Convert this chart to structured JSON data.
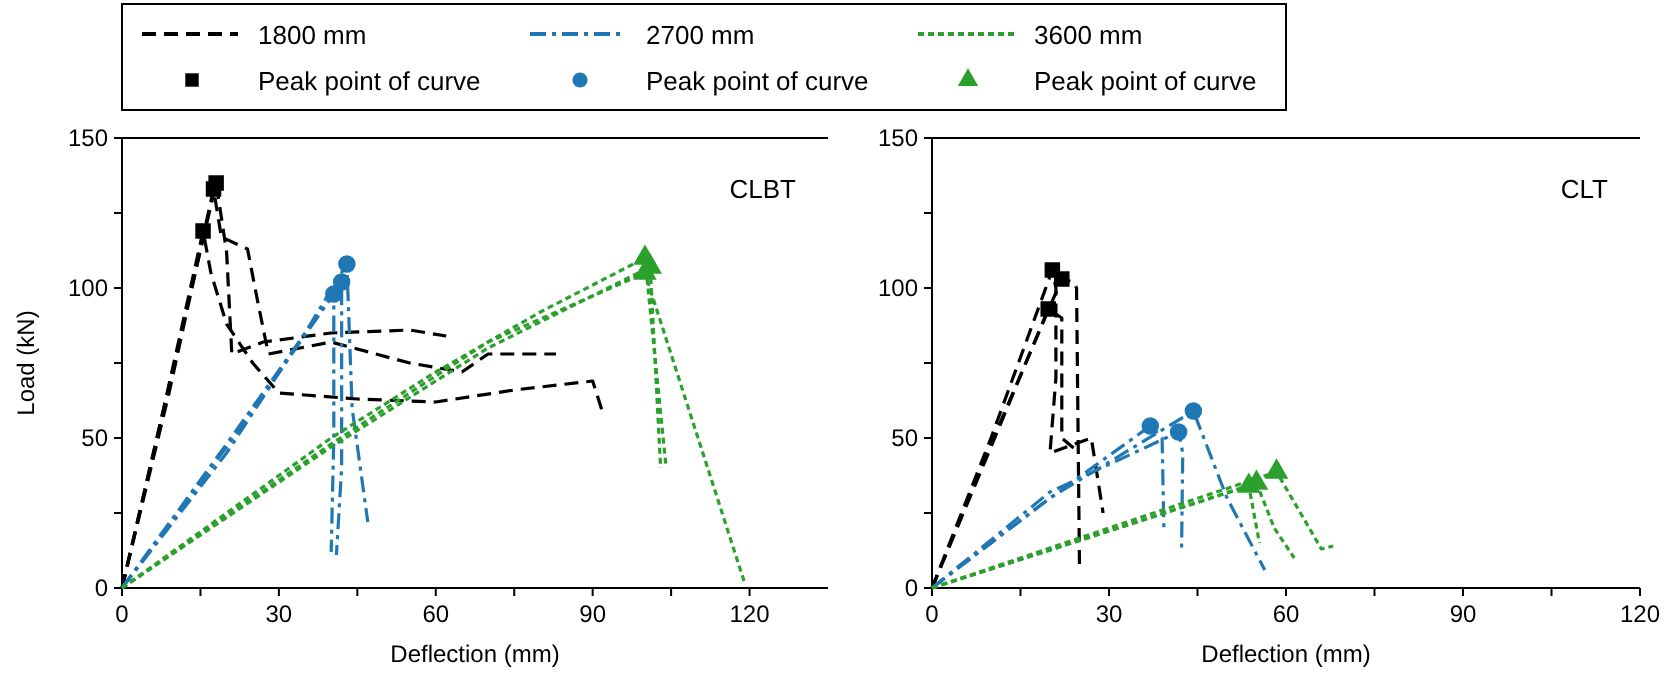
{
  "chart_data": [
    {
      "type": "line",
      "xlabel": "Deflection (mm)",
      "ylabel": "Load (kN)",
      "annotations": [
        "CLBT"
      ],
      "legend": "top",
      "xlim": [
        0,
        135
      ],
      "ylim": [
        0,
        150
      ],
      "xticks": [
        0,
        {
          "value": 15,
          "label": null
        },
        30,
        {
          "value": 45,
          "label": null
        },
        60,
        {
          "value": 75,
          "label": null
        },
        90,
        {
          "value": 105,
          "label": null
        },
        120
      ],
      "yticks": [
        0,
        {
          "value": 25,
          "label": null
        },
        50,
        {
          "value": 75,
          "label": null
        },
        100,
        {
          "value": 125,
          "label": null
        },
        150
      ],
      "series": [
        {
          "name": "1800 mm",
          "color": "#000000",
          "line_style": "dashed",
          "x": [
            0,
            10,
            18,
            20,
            21,
            27,
            40,
            55,
            62
          ],
          "values": [
            0,
            75,
            135,
            112,
            78,
            82,
            85,
            86,
            84
          ]
        },
        {
          "color": "#000000",
          "line_style": "dashed",
          "x": [
            0,
            9,
            17.5,
            19,
            24,
            26,
            28,
            40,
            55,
            65,
            70,
            83
          ],
          "values": [
            0,
            65,
            133,
            117,
            113,
            95,
            78,
            82,
            75,
            72,
            78,
            78
          ]
        },
        {
          "color": "#000000",
          "line_style": "dashed",
          "x": [
            0,
            8,
            15.5,
            17,
            20,
            25,
            30,
            45,
            60,
            75,
            90,
            92
          ],
          "values": [
            0,
            60,
            119,
            105,
            88,
            75,
            65,
            63,
            62,
            66,
            69,
            58
          ]
        },
        {
          "name": "2700 mm",
          "color": "#1f77b4",
          "line_style": "dashdot",
          "x": [
            0,
            20,
            35,
            43,
            44,
            47
          ],
          "values": [
            0,
            45,
            85,
            108,
            60,
            22
          ]
        },
        {
          "color": "#1f77b4",
          "line_style": "dashdot",
          "x": [
            0,
            20,
            42,
            42,
            41
          ],
          "values": [
            0,
            48,
            102,
            40,
            11
          ]
        },
        {
          "color": "#1f77b4",
          "line_style": "dashdot",
          "x": [
            0,
            20,
            40.5,
            40.5,
            40
          ],
          "values": [
            0,
            47,
            98,
            50,
            12
          ]
        },
        {
          "name": "3600 mm",
          "color": "#2ca02c",
          "line_style": "dotted",
          "x": [
            0,
            20,
            40,
            60,
            80,
            100,
            104
          ],
          "values": [
            0,
            25,
            50,
            72,
            92,
            110,
            41
          ]
        },
        {
          "color": "#2ca02c",
          "line_style": "dotted",
          "x": [
            0,
            40,
            70,
            100,
            119
          ],
          "values": [
            0,
            48,
            82,
            105,
            2
          ]
        },
        {
          "color": "#2ca02c",
          "line_style": "dotted",
          "x": [
            0,
            40,
            70,
            101,
            103
          ],
          "values": [
            0,
            47,
            80,
            107,
            40
          ]
        },
        {
          "name": "Peak point of curve",
          "type": "scatter",
          "marker": "square",
          "color": "#000000",
          "x": [
            18,
            17.5,
            15.5
          ],
          "values": [
            135,
            133,
            119
          ]
        },
        {
          "name": "Peak point of curve",
          "type": "scatter",
          "marker": "circle",
          "color": "#1f77b4",
          "x": [
            43,
            42,
            40.5
          ],
          "values": [
            108,
            102,
            98
          ]
        },
        {
          "name": "Peak point of curve",
          "type": "scatter",
          "marker": "triangle",
          "color": "#2ca02c",
          "x": [
            100,
            100,
            101
          ],
          "values": [
            110,
            105,
            107
          ]
        }
      ]
    },
    {
      "type": "line",
      "xlabel": "Deflection (mm)",
      "annotations": [
        "CLT"
      ],
      "xlim": [
        0,
        120
      ],
      "ylim": [
        0,
        150
      ],
      "xticks": [
        0,
        {
          "value": 15,
          "label": null
        },
        30,
        {
          "value": 45,
          "label": null
        },
        60,
        {
          "value": 75,
          "label": null
        },
        90,
        {
          "value": 105,
          "label": null
        },
        120
      ],
      "yticks": [
        0,
        {
          "value": 25,
          "label": null
        },
        50,
        {
          "value": 75,
          "label": null
        },
        100,
        {
          "value": 125,
          "label": null
        },
        150
      ],
      "series": [
        {
          "color": "#000000",
          "line_style": "dashed",
          "x": [
            0,
            10,
            20.4,
            21,
            21,
            20,
            27,
            29
          ],
          "values": [
            0,
            50,
            106,
            100,
            70,
            45,
            50,
            25
          ]
        },
        {
          "color": "#000000",
          "line_style": "dashed",
          "x": [
            0,
            10,
            22,
            24,
            24.5,
            25
          ],
          "values": [
            0,
            48,
            103,
            102,
            100,
            7
          ]
        },
        {
          "color": "#000000",
          "line_style": "dashed",
          "x": [
            0,
            10,
            19.7,
            22,
            22,
            25
          ],
          "values": [
            0,
            47,
            93,
            90,
            50,
            45
          ]
        },
        {
          "color": "#1f77b4",
          "line_style": "dashdot",
          "x": [
            0,
            20,
            37,
            39,
            39.3
          ],
          "values": [
            0,
            30,
            54,
            50,
            20
          ]
        },
        {
          "color": "#1f77b4",
          "line_style": "dashdot",
          "x": [
            0,
            20,
            41.8,
            42.5,
            42.3
          ],
          "values": [
            0,
            32,
            52,
            45,
            13
          ]
        },
        {
          "color": "#1f77b4",
          "line_style": "dashdot",
          "x": [
            0,
            20,
            44.3,
            50,
            56.4
          ],
          "values": [
            0,
            30,
            59,
            30,
            6
          ]
        },
        {
          "color": "#2ca02c",
          "line_style": "dotted",
          "x": [
            0,
            30,
            58.4,
            66,
            68
          ],
          "values": [
            0,
            20,
            38.7,
            13,
            14
          ]
        },
        {
          "color": "#2ca02c",
          "line_style": "dotted",
          "x": [
            0,
            30,
            55,
            58,
            61.4
          ],
          "values": [
            0,
            19,
            35,
            20,
            10
          ]
        },
        {
          "color": "#2ca02c",
          "line_style": "dotted",
          "x": [
            0,
            30,
            53.7,
            55.5
          ],
          "values": [
            0,
            19,
            34,
            15
          ]
        },
        {
          "type": "scatter",
          "marker": "square",
          "color": "#000000",
          "x": [
            20.4,
            22,
            19.7
          ],
          "values": [
            106,
            103,
            93
          ]
        },
        {
          "type": "scatter",
          "marker": "circle",
          "color": "#1f77b4",
          "x": [
            37,
            41.8,
            44.3
          ],
          "values": [
            54,
            52,
            59
          ]
        },
        {
          "type": "scatter",
          "marker": "triangle",
          "color": "#2ca02c",
          "x": [
            58.4,
            55,
            53.7
          ],
          "values": [
            38.7,
            35,
            34
          ]
        }
      ]
    }
  ]
}
